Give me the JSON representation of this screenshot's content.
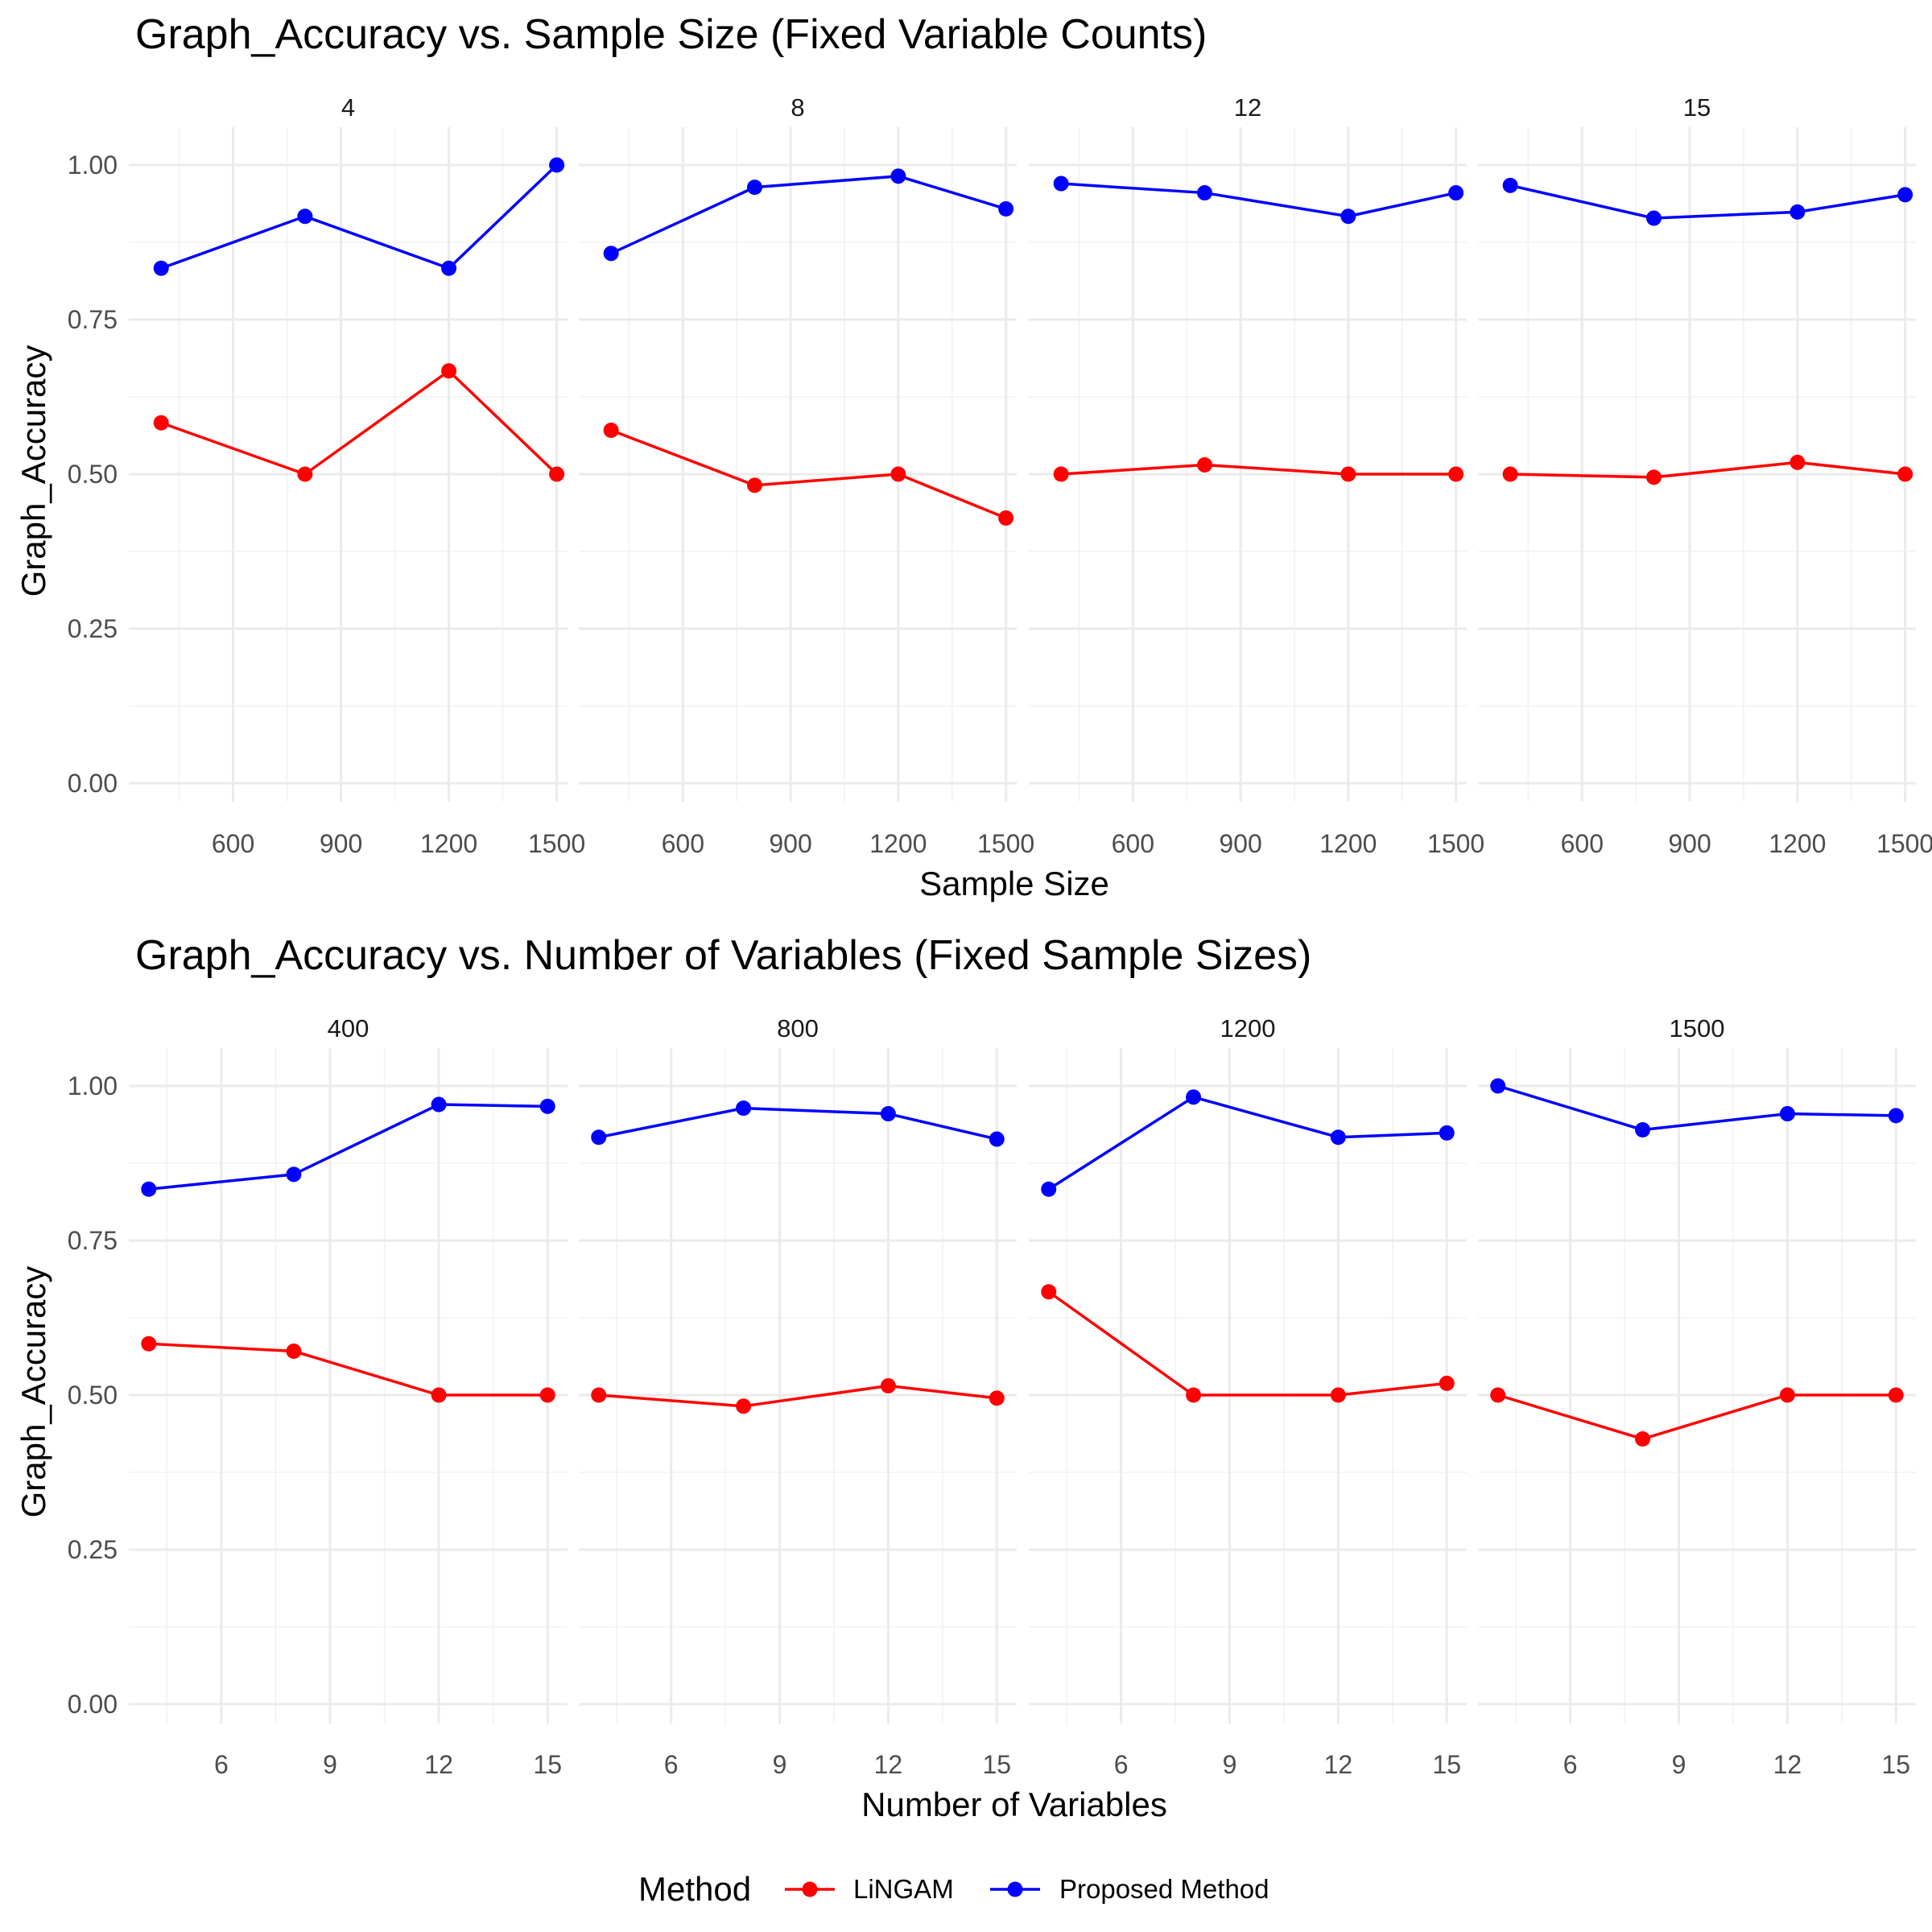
{
  "chart_data": [
    {
      "type": "line",
      "title": "Graph_Accuracy vs. Sample Size (Fixed Variable Counts)",
      "xlabel": "Sample Size",
      "ylabel": "Graph_Accuracy",
      "xlim": [
        310,
        1530
      ],
      "ylim": [
        0,
        1
      ],
      "x_ticks": [
        600,
        900,
        1200,
        1500
      ],
      "y_ticks": [
        "0.00",
        "0.25",
        "0.50",
        "0.75",
        "1.00"
      ],
      "grid": true,
      "facets": [
        {
          "label": "4",
          "series": [
            {
              "name": "LiNGAM",
              "x": [
                400,
                800,
                1200,
                1500
              ],
              "y": [
                0.583,
                0.5,
                0.667,
                0.5
              ]
            },
            {
              "name": "Proposed Method",
              "x": [
                400,
                800,
                1200,
                1500
              ],
              "y": [
                0.833,
                0.917,
                0.833,
                1.0
              ]
            }
          ]
        },
        {
          "label": "8",
          "series": [
            {
              "name": "LiNGAM",
              "x": [
                400,
                800,
                1200,
                1500
              ],
              "y": [
                0.571,
                0.482,
                0.5,
                0.429
              ]
            },
            {
              "name": "Proposed Method",
              "x": [
                400,
                800,
                1200,
                1500
              ],
              "y": [
                0.857,
                0.964,
                0.982,
                0.929
              ]
            }
          ]
        },
        {
          "label": "12",
          "series": [
            {
              "name": "LiNGAM",
              "x": [
                400,
                800,
                1200,
                1500
              ],
              "y": [
                0.5,
                0.515,
                0.5,
                0.5
              ]
            },
            {
              "name": "Proposed Method",
              "x": [
                400,
                800,
                1200,
                1500
              ],
              "y": [
                0.97,
                0.955,
                0.917,
                0.955
              ]
            }
          ]
        },
        {
          "label": "15",
          "series": [
            {
              "name": "LiNGAM",
              "x": [
                400,
                800,
                1200,
                1500
              ],
              "y": [
                0.5,
                0.495,
                0.519,
                0.5
              ]
            },
            {
              "name": "Proposed Method",
              "x": [
                400,
                800,
                1200,
                1500
              ],
              "y": [
                0.967,
                0.914,
                0.924,
                0.952
              ]
            }
          ]
        }
      ]
    },
    {
      "type": "line",
      "title": "Graph_Accuracy vs. Number of Variables (Fixed Sample Sizes)",
      "xlabel": "Number of Variables",
      "ylabel": "Graph_Accuracy",
      "xlim": [
        3.45,
        15.55
      ],
      "ylim": [
        0,
        1
      ],
      "x_ticks": [
        6,
        9,
        12,
        15
      ],
      "y_ticks": [
        "0.00",
        "0.25",
        "0.50",
        "0.75",
        "1.00"
      ],
      "grid": true,
      "facets": [
        {
          "label": "400",
          "series": [
            {
              "name": "LiNGAM",
              "x": [
                4,
                8,
                12,
                15
              ],
              "y": [
                0.583,
                0.571,
                0.5,
                0.5
              ]
            },
            {
              "name": "Proposed Method",
              "x": [
                4,
                8,
                12,
                15
              ],
              "y": [
                0.833,
                0.857,
                0.97,
                0.967
              ]
            }
          ]
        },
        {
          "label": "800",
          "series": [
            {
              "name": "LiNGAM",
              "x": [
                4,
                8,
                12,
                15
              ],
              "y": [
                0.5,
                0.482,
                0.515,
                0.495
              ]
            },
            {
              "name": "Proposed Method",
              "x": [
                4,
                8,
                12,
                15
              ],
              "y": [
                0.917,
                0.964,
                0.955,
                0.914
              ]
            }
          ]
        },
        {
          "label": "1200",
          "series": [
            {
              "name": "LiNGAM",
              "x": [
                4,
                8,
                12,
                15
              ],
              "y": [
                0.667,
                0.5,
                0.5,
                0.519
              ]
            },
            {
              "name": "Proposed Method",
              "x": [
                4,
                8,
                12,
                15
              ],
              "y": [
                0.833,
                0.982,
                0.917,
                0.924
              ]
            }
          ]
        },
        {
          "label": "1500",
          "series": [
            {
              "name": "LiNGAM",
              "x": [
                4,
                8,
                12,
                15
              ],
              "y": [
                0.5,
                0.429,
                0.5,
                0.5
              ]
            },
            {
              "name": "Proposed Method",
              "x": [
                4,
                8,
                12,
                15
              ],
              "y": [
                1.0,
                0.929,
                0.955,
                0.952
              ]
            }
          ]
        }
      ]
    }
  ],
  "legend": {
    "title": "Method",
    "position": "bottom",
    "items": [
      {
        "name": "LiNGAM",
        "color": "#ff0000"
      },
      {
        "name": "Proposed Method",
        "color": "#0000ff"
      }
    ]
  }
}
